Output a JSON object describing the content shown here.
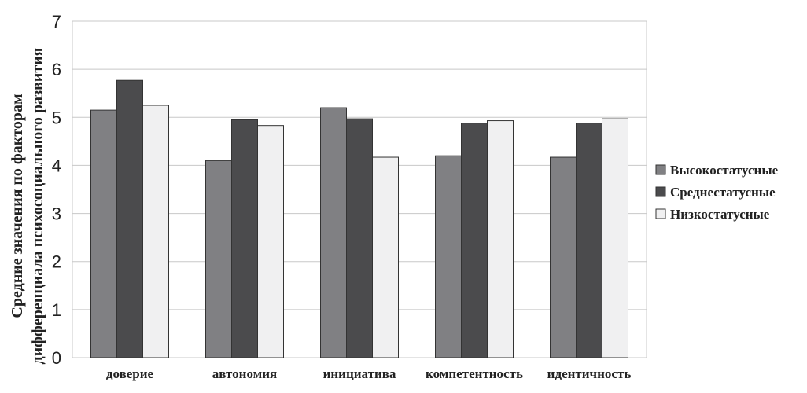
{
  "chart_data": {
    "type": "bar",
    "categories": [
      "доверие",
      "автономия",
      "инициатива",
      "компетентность",
      "идентичность"
    ],
    "series": [
      {
        "name": "Высокостатусные",
        "values": [
          5.15,
          4.1,
          5.2,
          4.2,
          4.17
        ],
        "color": "#808083"
      },
      {
        "name": "Среднестатусные",
        "values": [
          5.77,
          4.95,
          4.97,
          4.88,
          4.88
        ],
        "color": "#4b4b4d"
      },
      {
        "name": "Низкостатусные",
        "values": [
          5.25,
          4.83,
          4.17,
          4.93,
          4.97
        ],
        "color": "#f0f0f1"
      }
    ],
    "ylabel_lines": [
      "Средние значения по факторам",
      "дифференциала психосоциального развития"
    ],
    "xlabel": "",
    "ylim": [
      0,
      7
    ],
    "yticks": [
      "0",
      "1",
      "2",
      "3",
      "4",
      "5",
      "6",
      "7"
    ],
    "grid": true,
    "legend_position": "right"
  }
}
